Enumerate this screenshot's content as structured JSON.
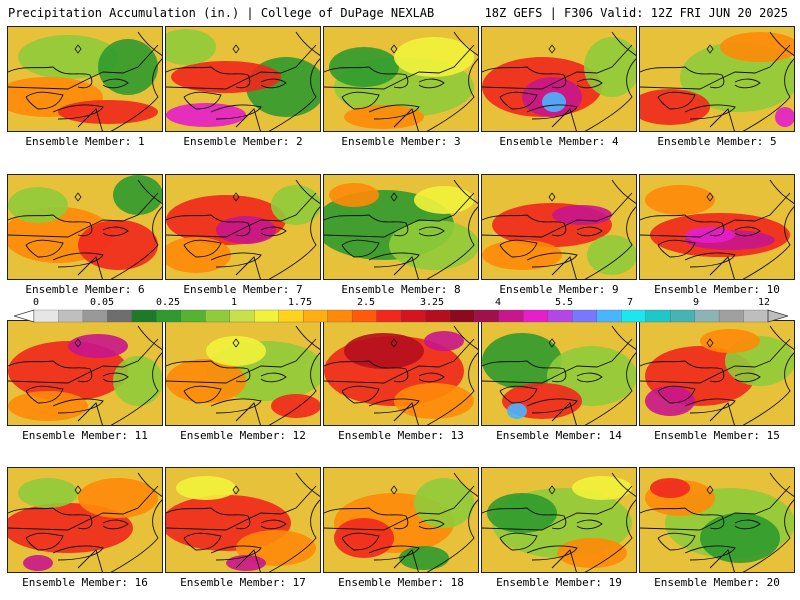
{
  "header": {
    "title_left": "Precipitation Accumulation (in.) | College of DuPage NEXLAB",
    "title_right": "18Z GEFS | F306 Valid: 12Z FRI JUN 20 2025"
  },
  "legend": {
    "ticks": [
      "0",
      "0.05",
      "0.25",
      "1",
      "1.75",
      "2.5",
      "3.25",
      "4",
      "5.5",
      "7",
      "9",
      "12"
    ],
    "colors": [
      "#e6e6e6",
      "#bfbfbf",
      "#999999",
      "#6e6e6e",
      "#1e7a28",
      "#2f9a2f",
      "#56b32f",
      "#8fcb3a",
      "#c8e04a",
      "#f2f23c",
      "#ffd21e",
      "#ffae14",
      "#ff8a0a",
      "#ff5a0a",
      "#f0281e",
      "#d4141e",
      "#b40f1e",
      "#8c0a1e",
      "#a0104a",
      "#c8168c",
      "#e61ecc",
      "#b446e6",
      "#7878ff",
      "#4ab4ff",
      "#1ee6f0",
      "#1ec8c8",
      "#46b4b4",
      "#8cb4b4",
      "#a0a0a0",
      "#bebebe"
    ]
  },
  "panels": [
    {
      "label": "Ensemble Member: 1"
    },
    {
      "label": "Ensemble Member: 2"
    },
    {
      "label": "Ensemble Member: 3"
    },
    {
      "label": "Ensemble Member: 4"
    },
    {
      "label": "Ensemble Member: 5"
    },
    {
      "label": "Ensemble Member: 6"
    },
    {
      "label": "Ensemble Member: 7"
    },
    {
      "label": "Ensemble Member: 8"
    },
    {
      "label": "Ensemble Member: 9"
    },
    {
      "label": "Ensemble Member: 10"
    },
    {
      "label": "Ensemble Member: 11"
    },
    {
      "label": "Ensemble Member: 12"
    },
    {
      "label": "Ensemble Member: 13"
    },
    {
      "label": "Ensemble Member: 14"
    },
    {
      "label": "Ensemble Member: 15"
    },
    {
      "label": "Ensemble Member: 16"
    },
    {
      "label": "Ensemble Member: 17"
    },
    {
      "label": "Ensemble Member: 18"
    },
    {
      "label": "Ensemble Member: 19"
    },
    {
      "label": "Ensemble Member: 20"
    }
  ],
  "colors": {
    "base": "#e8c13a",
    "light_green": "#8fcb3a",
    "green": "#2f9a2f",
    "yellow": "#f2f23c",
    "orange": "#ff8a0a",
    "red": "#f0281e",
    "darkred": "#b40f1e",
    "magenta": "#c8168c",
    "purple": "#e61ecc",
    "cyan": "#4ab4ff",
    "outline": "#111111"
  }
}
